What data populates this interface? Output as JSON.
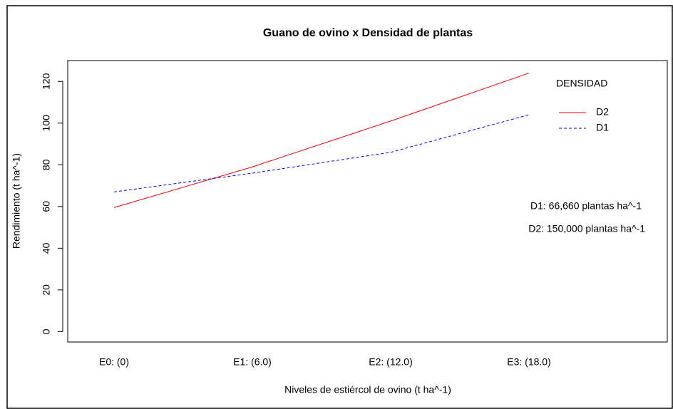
{
  "chart_data": {
    "type": "line",
    "title": "Guano de ovino x Densidad de plantas",
    "x_label": "Niveles de estiércol de ovino (t ha^-1)",
    "y_label": "Rendimiento (t ha^-1)",
    "categories": [
      "E0: (0)",
      "E1: (6.0)",
      "E2: (12.0)",
      "E3: (18.0)"
    ],
    "legend_title": "DENSIDAD",
    "series": [
      {
        "name": "D2",
        "color": "#ff0000",
        "dash": "solid",
        "values": [
          59.5,
          79,
          101,
          124
        ]
      },
      {
        "name": "D1",
        "color": "#0000ff",
        "dash": "dashed",
        "values": [
          67,
          76,
          86,
          104
        ]
      }
    ],
    "annotations": [
      "D1: 66,660 plantas ha^-1",
      "D2: 150,000 plantas ha^-1"
    ],
    "ylim": [
      -5,
      130
    ],
    "yticks": [
      0,
      20,
      40,
      60,
      80,
      100,
      120
    ],
    "legend": "top-right"
  }
}
